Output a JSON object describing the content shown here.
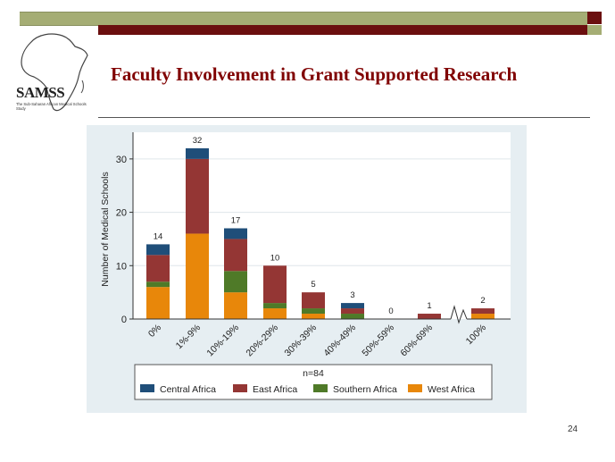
{
  "slide": {
    "title": "Faculty Involvement in Grant Supported Research",
    "page_number": "24",
    "logo_name": "SAMSS",
    "logo_subtitle": "The Sub-Saharan African Medical Schools Study"
  },
  "colors": {
    "olive_band": "#a5ad74",
    "maroon_band": "#6b0f0f",
    "title": "#800000",
    "Central Africa": "#1f4e79",
    "East Africa": "#943634",
    "Southern Africa": "#4f7a28",
    "West Africa": "#e8870a"
  },
  "chart_data": {
    "type": "bar",
    "stacked": true,
    "ylabel": "Number of Medical Schools",
    "xlabel": "",
    "ylim": [
      0,
      35
    ],
    "yticks": [
      0,
      10,
      20,
      30
    ],
    "grid": true,
    "axis_break_before_last": true,
    "categories": [
      "0%",
      "1%-9%",
      "10%-19%",
      "20%-29%",
      "30%-39%",
      "40%-49%",
      "50%-59%",
      "60%-69%",
      "100%"
    ],
    "totals": [
      14,
      32,
      17,
      10,
      5,
      3,
      0,
      1,
      2
    ],
    "series": [
      {
        "name": "West Africa",
        "values": [
          6,
          16,
          5,
          2,
          1,
          0,
          0,
          0,
          1
        ]
      },
      {
        "name": "Southern Africa",
        "values": [
          1,
          0,
          4,
          1,
          1,
          1,
          0,
          0,
          0
        ]
      },
      {
        "name": "East Africa",
        "values": [
          5,
          14,
          6,
          7,
          3,
          1,
          0,
          1,
          1
        ]
      },
      {
        "name": "Central Africa",
        "values": [
          2,
          2,
          2,
          0,
          0,
          1,
          0,
          0,
          0
        ]
      }
    ],
    "legend": {
      "title": "n=84",
      "position": "bottom",
      "entries": [
        "Central Africa",
        "East Africa",
        "Southern Africa",
        "West Africa"
      ]
    }
  }
}
